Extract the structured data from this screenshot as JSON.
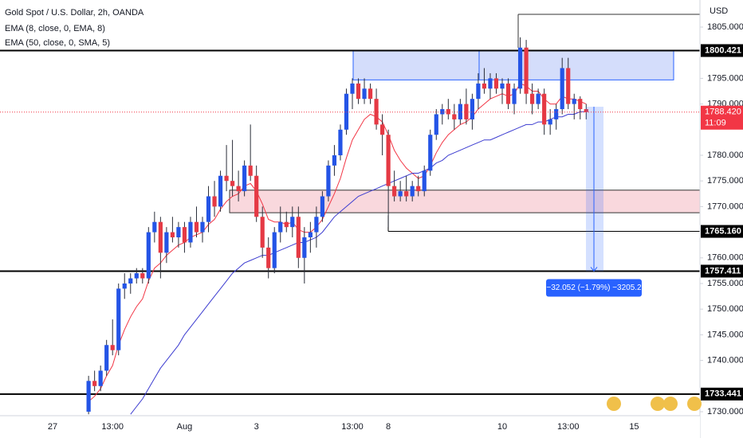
{
  "chart_data": {
    "type": "candlestick",
    "title": "Gold Spot / U.S. Dollar, 2h, OANDA",
    "currency": "USD",
    "categories": [
      "27",
      null,
      null,
      null,
      null,
      null,
      null,
      null,
      null,
      null,
      "13:00",
      null,
      null,
      null,
      null,
      null,
      null,
      null,
      null,
      null,
      null,
      null,
      "Aug",
      null,
      null,
      null,
      null,
      null,
      null,
      null,
      null,
      null,
      null,
      null,
      "3",
      null,
      null,
      null,
      null,
      null,
      null,
      null,
      null,
      null,
      null,
      null,
      null,
      null,
      null,
      null,
      "13:00",
      null,
      null,
      null,
      null,
      null,
      "8",
      null,
      null,
      null,
      null,
      null,
      null,
      null,
      null,
      null,
      null,
      null,
      null,
      null,
      null,
      null,
      null,
      null,
      null,
      "10",
      null,
      null,
      null,
      null,
      null,
      null,
      null,
      null,
      null,
      null,
      "13:00",
      null,
      null,
      null,
      null,
      null,
      null,
      null,
      null,
      null,
      null,
      "15"
    ],
    "open": [
      null,
      null,
      null,
      null,
      null,
      null,
      1730,
      1736,
      1735,
      1738,
      1743,
      1742,
      1754,
      1755,
      1756,
      1757,
      1756,
      1765,
      1767,
      1761,
      1765,
      1764,
      1766,
      1763,
      1767,
      1765,
      1767,
      1772,
      1770,
      1776,
      1775,
      1774,
      1773,
      1778,
      1776,
      1768,
      1762,
      1758,
      1765,
      1767,
      1766,
      1768,
      1760,
      1764,
      1765,
      1768,
      1772,
      1778,
      1780,
      1785,
      1792,
      1794,
      1791,
      1793,
      1791,
      1786,
      1784,
      1774,
      1772,
      1773,
      1772,
      1774,
      1773,
      1777,
      1784,
      1788,
      1789,
      1788,
      1787,
      1790,
      1787,
      1791,
      1794,
      1793,
      1795,
      1793,
      1794,
      1790,
      1793,
      1801,
      1792,
      1790,
      1792,
      1786,
      1787,
      1789,
      1797,
      1790,
      1791,
      1789,
      null,
      null,
      null,
      null,
      null,
      null,
      null,
      null
    ],
    "high": [
      null,
      null,
      null,
      null,
      null,
      null,
      1737,
      1738,
      1739,
      1744,
      1748,
      1755,
      1757,
      1757,
      1758,
      1758,
      1766,
      1769,
      1768,
      1766,
      1768,
      1767,
      1767,
      1768,
      1770,
      1768,
      1774,
      1775,
      1777,
      1782,
      1783,
      1777,
      1779,
      1786,
      1778,
      1770,
      1764,
      1766,
      1770,
      1769,
      1770,
      1770,
      1766,
      1767,
      1770,
      1773,
      1779,
      1782,
      1786,
      1793,
      1795,
      1795,
      1795,
      1794,
      1793,
      1788,
      1785,
      1777,
      1775,
      1776,
      1775,
      1776,
      1778,
      1785,
      1789,
      1790,
      1791,
      1790,
      1791,
      1793,
      1792,
      1796,
      1797,
      1796,
      1796,
      1795,
      1795,
      1794,
      1803,
      1802.5,
      1794,
      1793,
      1793,
      1789,
      1790,
      1799,
      1799,
      1792,
      1791.5,
      1790,
      null,
      null,
      null,
      null,
      null,
      null,
      null,
      null
    ],
    "low": [
      null,
      null,
      null,
      null,
      null,
      null,
      1729.5,
      1734,
      1734,
      1737,
      1741,
      1741,
      1752,
      1753,
      1755,
      1755,
      1755,
      1763,
      1756,
      1759,
      1763,
      1762,
      1761,
      1762,
      1764,
      1763,
      1765,
      1768,
      1769,
      1773,
      1772,
      1771,
      1772,
      1775,
      1767,
      1760,
      1756,
      1757,
      1763,
      1765,
      1764,
      1758,
      1755,
      1761,
      1762,
      1767,
      1771,
      1776,
      1779,
      1784,
      1789,
      1790,
      1790,
      1790,
      1785,
      1780,
      1766,
      1771,
      1771,
      1771,
      1771,
      1772,
      1772,
      1776,
      1783,
      1786,
      1787,
      1785,
      1786,
      1786,
      1785,
      1789,
      1792,
      1791,
      1792,
      1790,
      1789,
      1788,
      1792,
      1790,
      1788,
      1789,
      1784,
      1784,
      1785,
      1788,
      1789,
      1787,
      1787,
      1787,
      null,
      null,
      null,
      null,
      null,
      null,
      null,
      null
    ],
    "close": [
      null,
      null,
      null,
      null,
      null,
      null,
      1736,
      1735,
      1738,
      1743,
      1742,
      1754,
      1755,
      1756,
      1757,
      1756,
      1765,
      1767,
      1761,
      1765,
      1764,
      1766,
      1763,
      1767,
      1765,
      1767,
      1772,
      1770,
      1776,
      1775,
      1774,
      1773,
      1778,
      1776,
      1768,
      1762,
      1758,
      1765,
      1767,
      1766,
      1768,
      1760,
      1764,
      1765,
      1768,
      1772,
      1778,
      1780,
      1785,
      1792,
      1794,
      1791,
      1793,
      1791,
      1786,
      1784,
      1774,
      1772,
      1773,
      1772,
      1774,
      1773,
      1777,
      1784,
      1788,
      1789,
      1788,
      1787,
      1790,
      1787,
      1791,
      1794,
      1793,
      1795,
      1793,
      1794,
      1790,
      1793,
      1801,
      1792,
      1790,
      1792,
      1786,
      1787,
      1789,
      1797,
      1790,
      1791,
      1789,
      1788.42,
      null,
      null,
      null,
      null,
      null,
      null,
      null,
      null
    ],
    "up_color": "#2454e6",
    "down_color": "#e53944",
    "wick_color": "#2a2e39",
    "lines": [
      {
        "name": "EMA (8, close, 0, EMA, 8)",
        "color": "#f23645",
        "values": [
          null,
          null,
          null,
          null,
          null,
          null,
          1732,
          1733,
          1734.5,
          1737,
          1739,
          1743,
          1746,
          1748.5,
          1750.5,
          1752,
          1755.5,
          1758,
          1759,
          1760.5,
          1761.5,
          1762.5,
          1763,
          1764,
          1764.5,
          1765,
          1766.5,
          1767.5,
          1769.5,
          1771,
          1772,
          1772.5,
          1774,
          1774.5,
          1773,
          1770.5,
          1767.5,
          1767,
          1767,
          1766.5,
          1767,
          1765.5,
          1765,
          1765,
          1766,
          1767.5,
          1770,
          1772.5,
          1775.5,
          1779.5,
          1783,
          1785,
          1787,
          1788,
          1787.5,
          1786.5,
          1784,
          1781,
          1779,
          1777.5,
          1776.5,
          1775.5,
          1776,
          1778,
          1780.5,
          1782.5,
          1784,
          1785,
          1786,
          1786.5,
          1787.5,
          1789,
          1790,
          1791,
          1791.5,
          1792,
          1791.5,
          1792,
          1794,
          1793.5,
          1792.5,
          1792.5,
          1791,
          1790,
          1790,
          1791.5,
          1791,
          1791,
          1790.5,
          1790,
          null,
          null,
          null,
          null,
          null,
          null,
          null,
          null
        ]
      },
      {
        "name": "EMA (50, close, 0, SMA, 5)",
        "color": "#3c3cd0",
        "values": [
          null,
          null,
          null,
          null,
          null,
          null,
          null,
          null,
          null,
          null,
          null,
          null,
          null,
          1729.5,
          1731,
          1732.5,
          1734.5,
          1736.5,
          1738.5,
          1740,
          1741.5,
          1743,
          1745,
          1746.5,
          1748,
          1749.5,
          1751,
          1752.5,
          1754,
          1755.5,
          1757,
          1758,
          1759,
          1759.5,
          1760,
          1760.5,
          1760.5,
          1761,
          1761.5,
          1762,
          1762.5,
          1763,
          1763,
          1763.5,
          1764,
          1765,
          1766.5,
          1768,
          1769,
          1770,
          1771,
          1772,
          1772.5,
          1773,
          1773.5,
          1774,
          1774.5,
          1775,
          1775.5,
          1776,
          1776.5,
          1776.5,
          1777,
          1777.5,
          1778.5,
          1779,
          1780,
          1780.5,
          1781,
          1781.5,
          1782,
          1782.5,
          1783,
          1783,
          1783.5,
          1784,
          1784.5,
          1785,
          1785.5,
          1786,
          1786,
          1786.5,
          1786.5,
          1787,
          1787.5,
          1787.5,
          1788,
          1788,
          1788.5,
          1788.5,
          null,
          null,
          null,
          null,
          null,
          null,
          null,
          null
        ]
      }
    ],
    "ylim": [
      1729.22,
      1810.28
    ],
    "yticks": [
      {
        "value": 1730,
        "label": "1730.000"
      },
      {
        "value": 1740,
        "label": "1740.000"
      },
      {
        "value": 1745,
        "label": "1745.000"
      },
      {
        "value": 1750,
        "label": "1750.000"
      },
      {
        "value": 1755,
        "label": "1755.000"
      },
      {
        "value": 1760,
        "label": "1760.000"
      },
      {
        "value": 1770,
        "label": "1770.000"
      },
      {
        "value": 1775,
        "label": "1775.000"
      },
      {
        "value": 1780,
        "label": "1780.000"
      },
      {
        "value": 1790,
        "label": "1790.000"
      },
      {
        "value": 1795,
        "label": "1795.000"
      },
      {
        "value": 1805,
        "label": "1805.000"
      }
    ],
    "levels": [
      {
        "value": 1800.421,
        "label": "1800.421"
      },
      {
        "value": 1765.16,
        "label": "1765.160"
      },
      {
        "value": 1757.411,
        "label": "1757.411"
      },
      {
        "value": 1733.441,
        "label": "1733.441"
      }
    ],
    "zones": [
      {
        "top": 1800.421,
        "bottom": 1794.7,
        "color": "#d4ddfb"
      },
      {
        "top": 1773.2,
        "bottom": 1768.8,
        "color": "#f9d8dd"
      }
    ],
    "last_price": {
      "value": 1788.42,
      "label": "1788.420",
      "color": "#f23645"
    },
    "countdown": "11:09",
    "measure": {
      "start": 1789.463,
      "end": 1757.411,
      "label": "−32.052 (−1.79%) −3205.2",
      "color": "#2962ff"
    }
  }
}
